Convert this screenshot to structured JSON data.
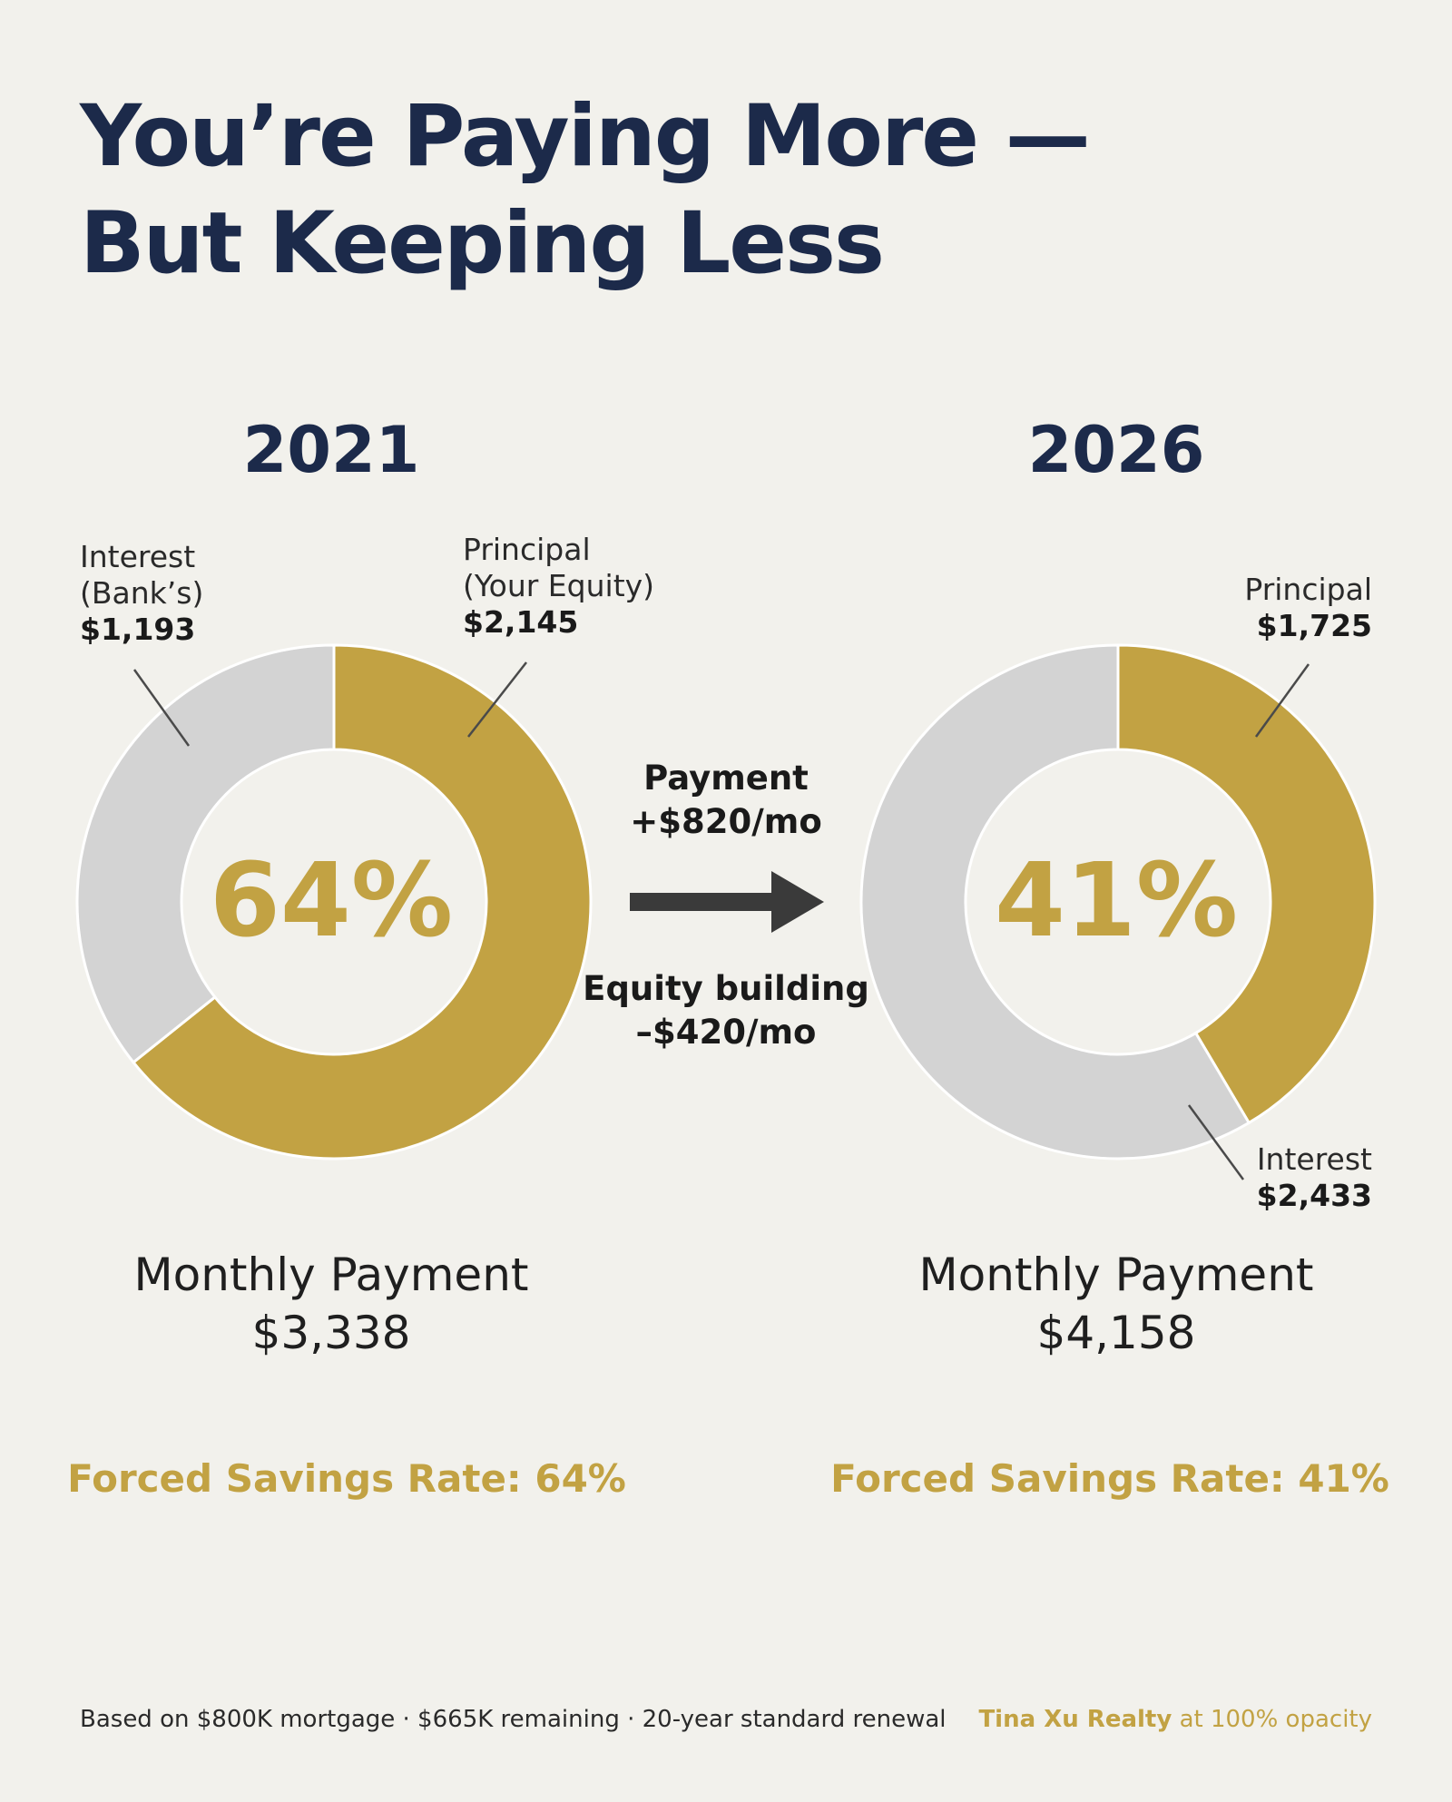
{
  "title": {
    "line1": "You’re Paying More —",
    "line2": "But Keeping Less"
  },
  "colors": {
    "principal": "#c2a243",
    "interest": "#d3d3d3",
    "navy": "#1c2a4a",
    "arrow": "#3a3a3a"
  },
  "chart_data": [
    {
      "type": "pie",
      "title": "2021",
      "slices": [
        {
          "name": "Principal (Your Equity)",
          "value": 2145
        },
        {
          "name": "Interest (Bank’s)",
          "value": 1193
        }
      ],
      "center_label": "64%",
      "total_label": "Monthly Payment",
      "total_value": "$3,338",
      "rate_label": "Forced Savings Rate: 64%"
    },
    {
      "type": "pie",
      "title": "2026",
      "slices": [
        {
          "name": "Principal",
          "value": 1725
        },
        {
          "name": "Interest",
          "value": 2433
        }
      ],
      "center_label": "41%",
      "total_label": "Monthly Payment",
      "total_value": "$4,158",
      "rate_label": "Forced Savings Rate: 41%"
    }
  ],
  "labels": {
    "c1_principal": {
      "line1": "Principal",
      "line2": "(Your Equity)",
      "value": "$2,145"
    },
    "c1_interest": {
      "line1": "Interest",
      "line2": "(Bank’s)",
      "value": "$1,193"
    },
    "c2_principal": {
      "line1": "Principal",
      "value": "$1,725"
    },
    "c2_interest": {
      "line1": "Interest",
      "value": "$2,433"
    }
  },
  "middle": {
    "payment_line1": "Payment",
    "payment_line2": "+$820/mo",
    "equity_line1": "Equity building",
    "equity_line2": "–$420/mo",
    "arrow_icon": "arrow-right-icon"
  },
  "footer": {
    "note": "Based on $800K mortgage · $665K remaining · 20-year standard renewal",
    "brand_name": "Tina Xu Realty",
    "brand_suffix": "at 100% opacity"
  }
}
